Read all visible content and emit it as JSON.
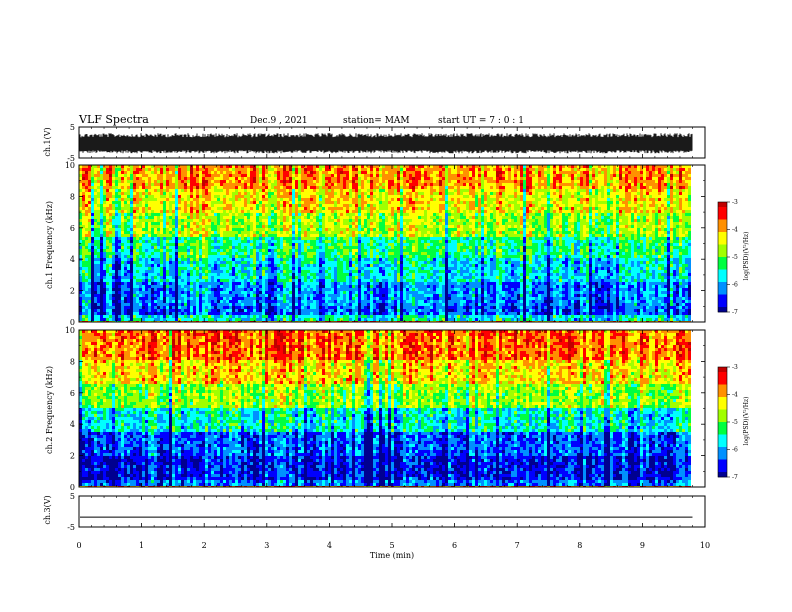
{
  "header": {
    "title": "VLF Spectra",
    "date": "Dec.9 , 2021",
    "station": "station= MAM",
    "start": "start UT = 7 : 0 : 1"
  },
  "chart_data": [
    {
      "type": "line",
      "panel": "ch1-waveform",
      "ylabel": "ch.1(V)",
      "ylim": [
        -5,
        5
      ],
      "yticks": [
        "5",
        "-5"
      ],
      "x_data_extent": [
        0,
        9.8
      ],
      "description_values": {
        "amplitude_range_v": [
          -3.5,
          3.0
        ],
        "center_v": 0.0
      }
    },
    {
      "type": "heatmap",
      "panel": "ch1-spectrogram",
      "ylabel": "ch.1 Frequency (kHz)",
      "ylim": [
        0,
        10
      ],
      "yticks": [
        "0",
        "2",
        "4",
        "6",
        "8",
        "10"
      ],
      "x_data_extent": [
        0,
        9.8
      ],
      "colorbar": {
        "label": "log(PSD)(V²/Hz)",
        "range": [
          -7,
          -3
        ],
        "ticks": [
          "-3",
          "-4",
          "-5",
          "-6",
          "-7"
        ]
      },
      "bands_log_psd": [
        {
          "freq_khz": [
            0.0,
            0.5
          ],
          "value": -5.6
        },
        {
          "freq_khz": [
            0.5,
            1.0
          ],
          "value": -6.3
        },
        {
          "freq_khz": [
            1.0,
            2.5
          ],
          "value": -6.1
        },
        {
          "freq_khz": [
            2.5,
            4.0
          ],
          "value": -5.7
        },
        {
          "freq_khz": [
            4.0,
            5.5
          ],
          "value": -5.3
        },
        {
          "freq_khz": [
            5.5,
            7.0
          ],
          "value": -4.7
        },
        {
          "freq_khz": [
            7.0,
            8.5
          ],
          "value": -4.3
        },
        {
          "freq_khz": [
            8.5,
            10.0
          ],
          "value": -3.9
        }
      ]
    },
    {
      "type": "heatmap",
      "panel": "ch2-spectrogram",
      "ylabel": "ch.2 Frequency (kHz)",
      "ylim": [
        0,
        10
      ],
      "yticks": [
        "0",
        "2",
        "4",
        "6",
        "8",
        "10"
      ],
      "x_data_extent": [
        0,
        9.8
      ],
      "colorbar": {
        "label": "log(PSD)(V²/Hz)",
        "range": [
          -7,
          -3
        ],
        "ticks": [
          "-3",
          "-4",
          "-5",
          "-6",
          "-7"
        ]
      },
      "bands_log_psd": [
        {
          "freq_khz": [
            0.0,
            0.5
          ],
          "value": -6.2
        },
        {
          "freq_khz": [
            0.5,
            2.0
          ],
          "value": -6.6
        },
        {
          "freq_khz": [
            2.0,
            3.5
          ],
          "value": -6.3
        },
        {
          "freq_khz": [
            3.5,
            5.0
          ],
          "value": -5.6
        },
        {
          "freq_khz": [
            5.0,
            6.5
          ],
          "value": -4.8
        },
        {
          "freq_khz": [
            6.5,
            8.0
          ],
          "value": -4.2
        },
        {
          "freq_khz": [
            8.0,
            10.0
          ],
          "value": -3.7
        }
      ]
    },
    {
      "type": "line",
      "panel": "ch3-waveform",
      "ylabel": "ch.3(V)",
      "ylim": [
        -5,
        5
      ],
      "yticks": [
        "5",
        "-5"
      ],
      "x_data_extent": [
        0,
        9.8
      ],
      "constant_value_v": -1.8
    }
  ],
  "x_axis": {
    "label": "Time (min)",
    "xlim": [
      0,
      10
    ],
    "ticks": [
      "0",
      "1",
      "2",
      "3",
      "4",
      "5",
      "6",
      "7",
      "8",
      "9",
      "10"
    ]
  },
  "colors": {
    "scale": [
      "#000090",
      "#0000ff",
      "#0090ff",
      "#00ffff",
      "#00ff40",
      "#a0ff00",
      "#ffff00",
      "#ff9000",
      "#ff0000",
      "#c00000"
    ]
  }
}
